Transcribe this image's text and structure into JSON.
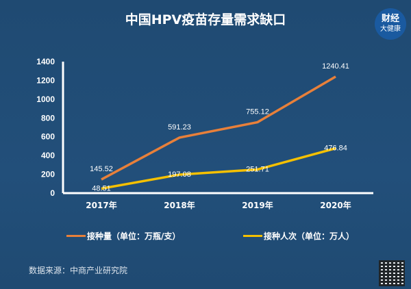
{
  "title": "中国HPV疫苗存量需求缺口",
  "logo": {
    "line1": "财经",
    "line2": "大健康"
  },
  "source": "数据来源：中商产业研究院",
  "chart_data": {
    "type": "line",
    "title": "中国HPV疫苗存量需求缺口",
    "categories": [
      "2017年",
      "2018年",
      "2019年",
      "2020年"
    ],
    "ylim": [
      0,
      1400
    ],
    "yticks": [
      0,
      200,
      400,
      600,
      800,
      1000,
      1200,
      1400
    ],
    "grid": false,
    "legend_position": "bottom",
    "series": [
      {
        "name": "接种量（单位：万瓶/支）",
        "color": "#e8803a",
        "values": [
          145.52,
          591.23,
          755.12,
          1240.41
        ],
        "labels": [
          "145.52",
          "591.23",
          "755.12",
          "1240.41"
        ]
      },
      {
        "name": "接种人次（单位：万人）",
        "color": "#f5c000",
        "values": [
          48.51,
          197.08,
          251.71,
          476.84
        ],
        "labels": [
          "48.51",
          "197.08",
          "251.71",
          "476.84"
        ]
      }
    ]
  }
}
